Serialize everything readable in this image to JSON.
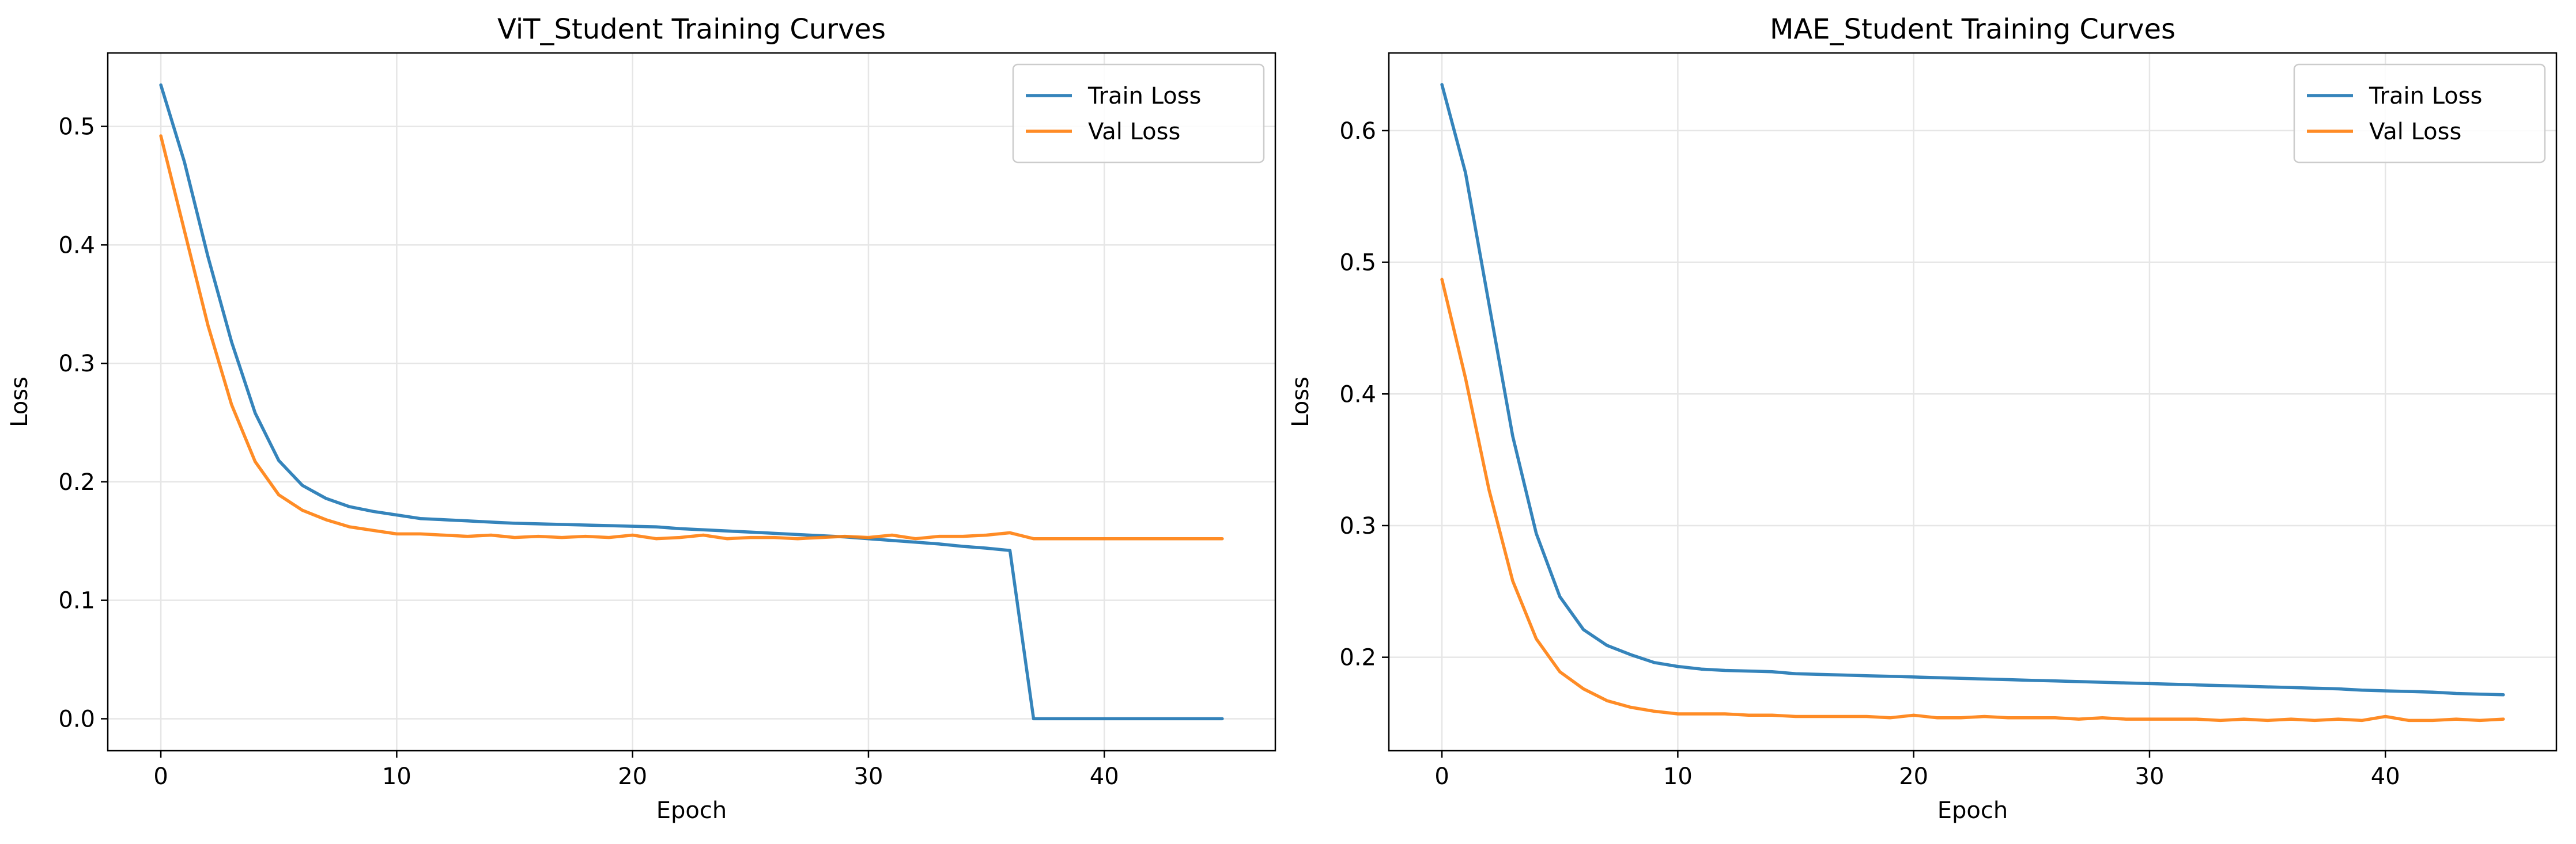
{
  "chart_data": [
    {
      "type": "line",
      "title": "ViT_Student Training Curves",
      "xlabel": "Epoch",
      "ylabel": "Loss",
      "xlim": [
        -2.25,
        47.25
      ],
      "ylim": [
        -0.027,
        0.562
      ],
      "xticks": [
        0,
        10,
        20,
        30,
        40
      ],
      "yticks": [
        0.0,
        0.1,
        0.2,
        0.3,
        0.4,
        0.5
      ],
      "ytick_labels": [
        "0.0",
        "0.1",
        "0.2",
        "0.3",
        "0.4",
        "0.5"
      ],
      "grid": true,
      "legend_position": "upper right",
      "x": [
        0,
        1,
        2,
        3,
        4,
        5,
        6,
        7,
        8,
        9,
        10,
        11,
        12,
        13,
        14,
        15,
        16,
        17,
        18,
        19,
        20,
        21,
        22,
        23,
        24,
        25,
        26,
        27,
        28,
        29,
        30,
        31,
        32,
        33,
        34,
        35,
        36,
        37,
        38,
        39,
        40,
        41,
        42,
        43,
        44,
        45
      ],
      "series": [
        {
          "name": "Train Loss",
          "color": "#1f77b4",
          "values": [
            0.535,
            0.47,
            0.39,
            0.318,
            0.258,
            0.218,
            0.197,
            0.186,
            0.179,
            0.175,
            0.172,
            0.169,
            0.168,
            0.167,
            0.166,
            0.165,
            0.1645,
            0.164,
            0.1635,
            0.163,
            0.1625,
            0.162,
            0.1605,
            0.1595,
            0.1585,
            0.1575,
            0.1565,
            0.1555,
            0.1545,
            0.1535,
            0.152,
            0.1505,
            0.149,
            0.1475,
            0.1455,
            0.144,
            0.142,
            0.0,
            0.0,
            0.0,
            0.0,
            0.0,
            0.0,
            0.0,
            0.0,
            0.0
          ]
        },
        {
          "name": "Val Loss",
          "color": "#ff7f0e",
          "values": [
            0.492,
            0.412,
            0.332,
            0.265,
            0.217,
            0.189,
            0.176,
            0.168,
            0.162,
            0.159,
            0.156,
            0.156,
            0.155,
            0.154,
            0.155,
            0.153,
            0.154,
            0.153,
            0.154,
            0.153,
            0.155,
            0.152,
            0.153,
            0.155,
            0.152,
            0.153,
            0.153,
            0.152,
            0.153,
            0.154,
            0.153,
            0.155,
            0.152,
            0.154,
            0.154,
            0.155,
            0.157,
            0.152,
            0.152,
            0.152,
            0.152,
            0.152,
            0.152,
            0.152,
            0.152,
            0.152
          ]
        }
      ]
    },
    {
      "type": "line",
      "title": "MAE_Student Training Curves",
      "xlabel": "Epoch",
      "ylabel": "Loss",
      "xlim": [
        -2.25,
        47.25
      ],
      "ylim": [
        0.129,
        0.659
      ],
      "xticks": [
        0,
        10,
        20,
        30,
        40
      ],
      "yticks": [
        0.2,
        0.3,
        0.4,
        0.5,
        0.6
      ],
      "ytick_labels": [
        "0.2",
        "0.3",
        "0.4",
        "0.5",
        "0.6"
      ],
      "grid": true,
      "legend_position": "upper right",
      "x": [
        0,
        1,
        2,
        3,
        4,
        5,
        6,
        7,
        8,
        9,
        10,
        11,
        12,
        13,
        14,
        15,
        16,
        17,
        18,
        19,
        20,
        21,
        22,
        23,
        24,
        25,
        26,
        27,
        28,
        29,
        30,
        31,
        32,
        33,
        34,
        35,
        36,
        37,
        38,
        39,
        40,
        41,
        42,
        43,
        44,
        45
      ],
      "series": [
        {
          "name": "Train Loss",
          "color": "#1f77b4",
          "values": [
            0.635,
            0.568,
            0.468,
            0.368,
            0.294,
            0.246,
            0.221,
            0.209,
            0.202,
            0.196,
            0.193,
            0.191,
            0.19,
            0.1895,
            0.189,
            0.1875,
            0.187,
            0.1865,
            0.186,
            0.1855,
            0.185,
            0.1845,
            0.184,
            0.1835,
            0.183,
            0.1825,
            0.182,
            0.1815,
            0.181,
            0.1805,
            0.18,
            0.1795,
            0.179,
            0.1785,
            0.178,
            0.1775,
            0.177,
            0.1765,
            0.176,
            0.175,
            0.1745,
            0.174,
            0.1735,
            0.1725,
            0.172,
            0.1715
          ]
        },
        {
          "name": "Val Loss",
          "color": "#ff7f0e",
          "values": [
            0.487,
            0.412,
            0.327,
            0.258,
            0.214,
            0.189,
            0.176,
            0.167,
            0.162,
            0.159,
            0.157,
            0.157,
            0.157,
            0.156,
            0.156,
            0.155,
            0.155,
            0.155,
            0.155,
            0.154,
            0.156,
            0.154,
            0.154,
            0.155,
            0.154,
            0.154,
            0.154,
            0.153,
            0.154,
            0.153,
            0.153,
            0.153,
            0.153,
            0.152,
            0.153,
            0.152,
            0.153,
            0.152,
            0.153,
            0.152,
            0.155,
            0.152,
            0.152,
            0.153,
            0.152,
            0.153
          ]
        }
      ]
    }
  ]
}
